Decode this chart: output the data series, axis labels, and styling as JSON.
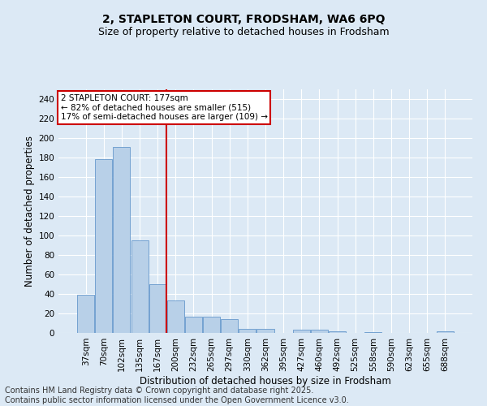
{
  "title_line1": "2, STAPLETON COURT, FRODSHAM, WA6 6PQ",
  "title_line2": "Size of property relative to detached houses in Frodsham",
  "xlabel": "Distribution of detached houses by size in Frodsham",
  "ylabel": "Number of detached properties",
  "categories": [
    "37sqm",
    "70sqm",
    "102sqm",
    "135sqm",
    "167sqm",
    "200sqm",
    "232sqm",
    "265sqm",
    "297sqm",
    "330sqm",
    "362sqm",
    "395sqm",
    "427sqm",
    "460sqm",
    "492sqm",
    "525sqm",
    "558sqm",
    "590sqm",
    "623sqm",
    "655sqm",
    "688sqm"
  ],
  "values": [
    39,
    178,
    191,
    95,
    50,
    33,
    17,
    17,
    14,
    4,
    4,
    0,
    3,
    3,
    2,
    0,
    1,
    0,
    0,
    0,
    2
  ],
  "bar_color": "#b8d0e8",
  "bar_edgecolor": "#6699cc",
  "vline_color": "#cc0000",
  "annotation_box_text": "2 STAPLETON COURT: 177sqm\n← 82% of detached houses are smaller (515)\n17% of semi-detached houses are larger (109) →",
  "annotation_box_color": "#cc0000",
  "annotation_text_color": "#000000",
  "ylim": [
    0,
    250
  ],
  "yticks": [
    0,
    20,
    40,
    60,
    80,
    100,
    120,
    140,
    160,
    180,
    200,
    220,
    240
  ],
  "footer_line1": "Contains HM Land Registry data © Crown copyright and database right 2025.",
  "footer_line2": "Contains public sector information licensed under the Open Government Licence v3.0.",
  "background_color": "#dce9f5",
  "title_fontsize": 10,
  "subtitle_fontsize": 9,
  "axis_label_fontsize": 8.5,
  "tick_fontsize": 7.5,
  "footer_fontsize": 7
}
